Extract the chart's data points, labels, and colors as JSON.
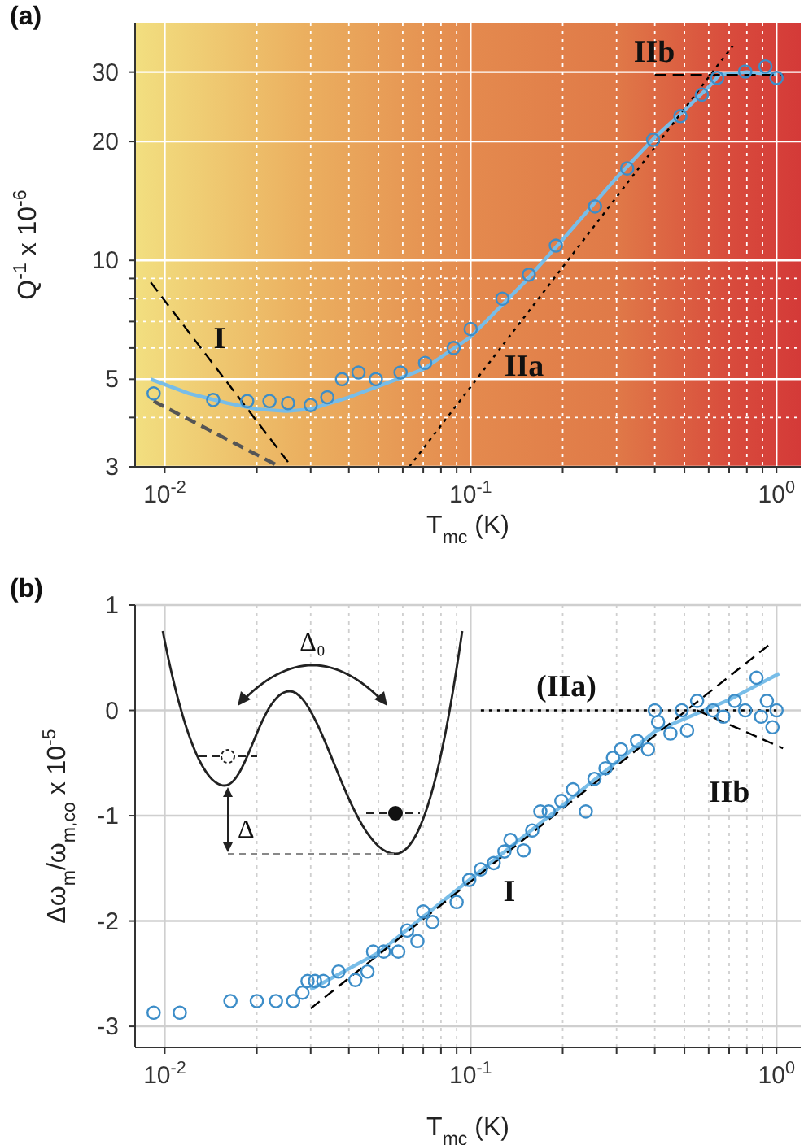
{
  "chart_data": [
    {
      "type": "scatter",
      "title": "(a)",
      "xlabel": "T$_{mc}$ (K)",
      "ylabel": "Q$^{-1}$ x 10$^{-6}$",
      "log": "xy",
      "grid": true,
      "marker": "circle",
      "xlim": [
        0.008,
        1.2
      ],
      "xticks": [
        {
          "value": 0.01,
          "label": "10$^{-2}$"
        },
        {
          "value": 0.02,
          "label": null
        },
        {
          "value": 0.03,
          "label": null
        },
        {
          "value": 0.04,
          "label": null
        },
        {
          "value": 0.05,
          "label": null
        },
        {
          "value": 0.06,
          "label": null
        },
        {
          "value": 0.07,
          "label": null
        },
        {
          "value": 0.08,
          "label": null
        },
        {
          "value": 0.09,
          "label": null
        },
        {
          "value": 0.1,
          "label": "10$^{-1}$"
        },
        {
          "value": 0.2,
          "label": null
        },
        {
          "value": 0.3,
          "label": null
        },
        {
          "value": 0.4,
          "label": null
        },
        {
          "value": 0.5,
          "label": null
        },
        {
          "value": 0.6,
          "label": null
        },
        {
          "value": 0.7,
          "label": null
        },
        {
          "value": 0.8,
          "label": null
        },
        {
          "value": 0.9,
          "label": null
        },
        {
          "value": 1,
          "label": "10$^{0}$"
        }
      ],
      "ylim": [
        3,
        40
      ],
      "yticks": [
        3,
        {
          "value": 4,
          "label": null
        },
        5,
        {
          "value": 6,
          "label": null
        },
        {
          "value": 7,
          "label": null
        },
        {
          "value": 8,
          "label": null
        },
        {
          "value": 9,
          "label": null
        },
        10,
        20,
        30
      ],
      "series": [
        {
          "color": "#3c8dc8",
          "x": [
            0.0092,
            0.0144,
            0.0186,
            0.022,
            0.0253,
            0.03,
            0.034,
            0.038,
            0.043,
            0.049,
            0.059,
            0.071,
            0.088,
            0.1,
            0.127,
            0.155,
            0.19,
            0.255,
            0.325,
            0.395,
            0.485,
            0.57,
            0.64,
            0.79,
            0.92,
            1.0
          ],
          "values": [
            4.6,
            4.43,
            4.4,
            4.4,
            4.35,
            4.3,
            4.5,
            5.0,
            5.2,
            5.0,
            5.2,
            5.5,
            6.0,
            6.7,
            8.0,
            9.2,
            10.9,
            13.7,
            17.1,
            20.2,
            23.2,
            26.3,
            29.0,
            30.1,
            31,
            29
          ]
        },
        {
          "type": "line",
          "color": "#78bde8",
          "marker": "none",
          "line_style": "solid",
          "x": [
            0.009,
            0.012,
            0.016,
            0.02,
            0.025,
            0.03,
            0.04,
            0.05,
            0.07,
            0.1,
            0.15,
            0.2,
            0.3,
            0.4,
            0.5,
            0.6,
            0.65,
            0.8,
            1.0
          ],
          "values": [
            5.0,
            4.6,
            4.35,
            4.2,
            4.15,
            4.2,
            4.5,
            4.8,
            5.3,
            6.4,
            8.8,
            11.3,
            16.2,
            20.5,
            24,
            27.5,
            29.5,
            30,
            29.5
          ]
        },
        {
          "type": "line",
          "color": "#000000",
          "marker": "none",
          "line_style": "dashed",
          "x": [
            0.009,
            0.026
          ],
          "values": [
            8.8,
            3.0
          ]
        },
        {
          "type": "line",
          "color": "#555555",
          "marker": "none",
          "line_style": "dashed",
          "x": [
            0.0092,
            0.0238
          ],
          "values": [
            4.4,
            3.0
          ]
        },
        {
          "type": "line",
          "color": "#000000",
          "marker": "none",
          "line_style": "dotted",
          "x": [
            0.063,
            0.72
          ],
          "values": [
            3.0,
            35
          ]
        },
        {
          "type": "line",
          "color": "#000000",
          "marker": "none",
          "line_style": "dashed",
          "x": [
            0.4,
            1.05
          ],
          "values": [
            29.5,
            29.5
          ]
        }
      ],
      "annotations": [
        "I",
        "IIa",
        "IIb"
      ]
    },
    {
      "type": "scatter",
      "title": "(b)",
      "xlabel": "T$_{mc}$ (K)",
      "ylabel": "Δω$_{m}$/ω$_{m,co}$ x 10$^{-5}$",
      "log": "x",
      "grid": true,
      "marker": "circle",
      "xlim": [
        0.008,
        1.2
      ],
      "xticks": [
        {
          "value": 0.01,
          "label": "10$^{-2}$"
        },
        {
          "value": 0.02,
          "label": null
        },
        {
          "value": 0.03,
          "label": null
        },
        {
          "value": 0.04,
          "label": null
        },
        {
          "value": 0.05,
          "label": null
        },
        {
          "value": 0.06,
          "label": null
        },
        {
          "value": 0.07,
          "label": null
        },
        {
          "value": 0.08,
          "label": null
        },
        {
          "value": 0.09,
          "label": null
        },
        {
          "value": 0.1,
          "label": "10$^{-1}$"
        },
        {
          "value": 0.2,
          "label": null
        },
        {
          "value": 0.3,
          "label": null
        },
        {
          "value": 0.4,
          "label": null
        },
        {
          "value": 0.5,
          "label": null
        },
        {
          "value": 0.6,
          "label": null
        },
        {
          "value": 0.7,
          "label": null
        },
        {
          "value": 0.8,
          "label": null
        },
        {
          "value": 0.9,
          "label": null
        },
        {
          "value": 1,
          "label": "10$^{0}$"
        }
      ],
      "ylim": [
        -3.2,
        1
      ],
      "yticks": [
        -3,
        -2,
        -1,
        0,
        1
      ],
      "series": [
        {
          "color": "#3c8dc8",
          "x": [
            0.0092,
            0.0112,
            0.0164,
            0.02,
            0.0231,
            0.0263,
            0.0282,
            0.0293,
            0.031,
            0.033,
            0.037,
            0.042,
            0.046,
            0.048,
            0.052,
            0.058,
            0.062,
            0.067,
            0.07,
            0.075,
            0.09,
            0.099,
            0.108,
            0.119,
            0.129,
            0.135,
            0.149,
            0.159,
            0.169,
            0.18,
            0.198,
            0.216,
            0.238,
            0.254,
            0.276,
            0.292,
            0.31,
            0.35,
            0.38,
            0.4,
            0.41,
            0.45,
            0.49,
            0.51,
            0.55,
            0.62,
            0.67,
            0.73,
            0.79,
            0.86,
            0.89,
            0.93,
            0.97,
            1.0
          ],
          "values": [
            -2.87,
            -2.87,
            -2.76,
            -2.76,
            -2.76,
            -2.76,
            -2.68,
            -2.57,
            -2.57,
            -2.57,
            -2.48,
            -2.56,
            -2.48,
            -2.29,
            -2.29,
            -2.29,
            -2.09,
            -2.19,
            -1.91,
            -2.01,
            -1.82,
            -1.61,
            -1.51,
            -1.45,
            -1.34,
            -1.23,
            -1.33,
            -1.14,
            -0.96,
            -0.96,
            -0.86,
            -0.75,
            -0.96,
            -0.65,
            -0.55,
            -0.45,
            -0.37,
            -0.29,
            -0.37,
            0,
            -0.11,
            -0.22,
            0,
            -0.19,
            0.09,
            0,
            -0.06,
            0.09,
            0,
            0.31,
            -0.06,
            0.09,
            -0.16,
            0
          ]
        },
        {
          "type": "line",
          "color": "#78bde8",
          "marker": "none",
          "line_style": "solid",
          "x": [
            0.03,
            0.05,
            0.1,
            0.2,
            0.4,
            0.7,
            1.02
          ],
          "values": [
            -2.65,
            -2.3,
            -1.6,
            -0.9,
            -0.2,
            0.1,
            0.35
          ]
        },
        {
          "type": "line",
          "color": "#000000",
          "marker": "none",
          "line_style": "dashed",
          "x": [
            0.03,
            0.953
          ],
          "values": [
            -2.83,
            0.63
          ]
        },
        {
          "type": "line",
          "color": "#000000",
          "marker": "none",
          "line_style": "dotted",
          "x": [
            0.108,
            1.0
          ],
          "values": [
            0,
            0
          ]
        },
        {
          "type": "line",
          "color": "#000000",
          "marker": "none",
          "line_style": "dashed",
          "x": [
            0.55,
            1.05
          ],
          "values": [
            0,
            -0.36
          ]
        }
      ],
      "annotations": [
        "Δ₀",
        "Δ",
        "(IIa)",
        "IIb",
        "I"
      ]
    }
  ]
}
